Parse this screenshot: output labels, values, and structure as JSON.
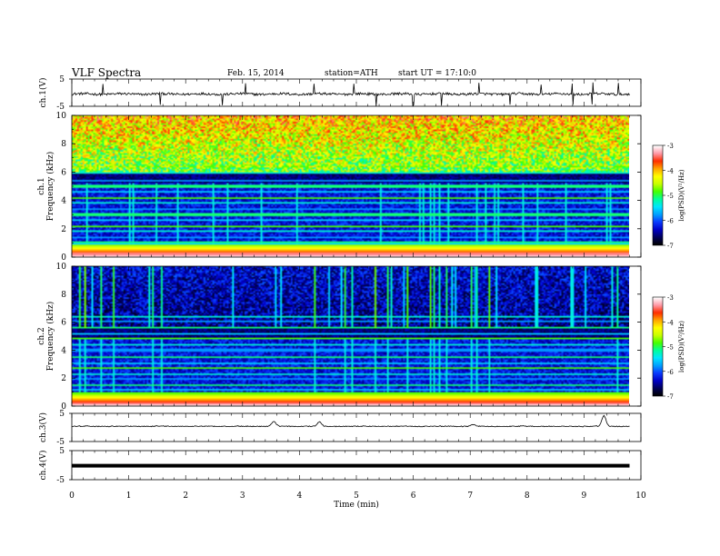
{
  "header": {
    "title": "VLF Spectra",
    "date": "Feb. 15, 2014",
    "station": "station=ATH",
    "start": "start UT = 17:10:0"
  },
  "chart_data": [
    {
      "type": "line",
      "name": "ch1-waveform",
      "ylabel": "ch.1(V)",
      "ylim": [
        -5,
        5
      ],
      "yticks": [
        "5",
        "-5"
      ],
      "baseline": -0.5,
      "noise": 0.45,
      "spike_times_min": [
        0.55,
        1.55,
        2.65,
        3.05,
        4.25,
        4.95,
        5.35,
        6.0,
        6.5,
        7.15,
        7.7,
        8.25,
        8.8,
        9.15,
        9.6
      ]
    },
    {
      "type": "heatmap",
      "name": "ch1-spectrogram",
      "ylabel": "ch.1\nFrequency (kHz)",
      "ylim": [
        0,
        10
      ],
      "yticks": [
        "0",
        "2",
        "4",
        "6",
        "8",
        "10"
      ],
      "colorbar_label": "log(PSD)(V²/Hz)",
      "colorbar_ticks": [
        "-3",
        "-4",
        "-5",
        "-6",
        "-7"
      ],
      "noise_floor_khz": 5.6,
      "lines_khz": [
        0.3,
        0.5,
        0.7,
        0.9,
        1.1,
        1.4,
        1.8,
        2.2,
        2.6,
        3.0,
        3.4,
        3.8,
        4.2,
        4.6,
        5.0,
        5.4,
        6.0,
        6.4
      ]
    },
    {
      "type": "heatmap",
      "name": "ch2-spectrogram",
      "ylabel": "ch.2\nFrequency (kHz)",
      "ylim": [
        0,
        10
      ],
      "yticks": [
        "0",
        "2",
        "4",
        "6",
        "8",
        "10"
      ],
      "colorbar_label": "log(PSD)(V²/Hz)",
      "colorbar_ticks": [
        "-3",
        "-4",
        "-5",
        "-6",
        "-7"
      ],
      "noise_floor_khz": 5.2,
      "lines_khz": [
        0.3,
        0.6,
        0.9,
        1.2,
        1.5,
        1.9,
        2.3,
        2.7,
        3.1,
        3.5,
        4.0,
        4.4,
        4.8,
        5.2,
        5.6,
        6.1,
        6.4
      ]
    },
    {
      "type": "line",
      "name": "ch3-waveform",
      "ylabel": "ch.3(V)",
      "ylim": [
        -5,
        5
      ],
      "yticks": [
        "5",
        "-5"
      ],
      "baseline": 0.4,
      "noise": 0.15,
      "bumps": [
        [
          3.55,
          1.8
        ],
        [
          4.35,
          1.5
        ],
        [
          7.05,
          0.6
        ],
        [
          9.35,
          3.8
        ]
      ]
    },
    {
      "type": "line",
      "name": "ch4-waveform",
      "ylabel": "ch.4(V)",
      "ylim": [
        -5,
        5
      ],
      "yticks": [
        "5",
        "-5"
      ],
      "baseline": -0.2
    }
  ],
  "xaxis": {
    "label": "Time (min)",
    "xlim": [
      0,
      10
    ],
    "ticks": [
      "0",
      "1",
      "2",
      "3",
      "4",
      "5",
      "6",
      "7",
      "8",
      "9",
      "10"
    ],
    "data_end_min": 9.8
  },
  "colors": {
    "colormap": [
      "#000000",
      "#00005a",
      "#0000c8",
      "#0a3cff",
      "#00a0ff",
      "#00e6ff",
      "#00ff9a",
      "#46ff00",
      "#c8ff00",
      "#ffff00",
      "#ffa500",
      "#ff2d00",
      "#ff9aa8",
      "#ffffff"
    ]
  }
}
